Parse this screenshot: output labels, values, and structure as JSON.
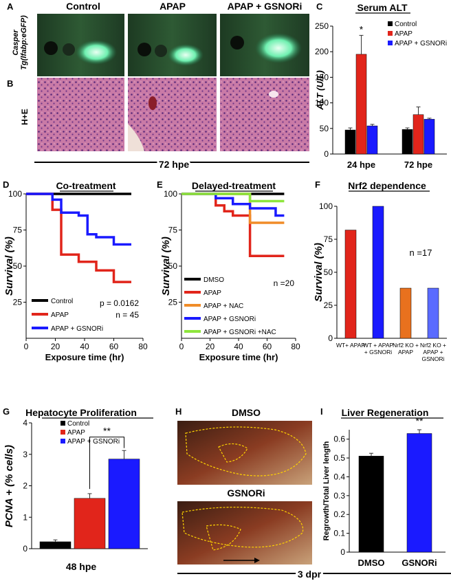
{
  "panel_letters": {
    "A": "A",
    "B": "B",
    "C": "C",
    "D": "D",
    "E": "E",
    "F": "F",
    "G": "G",
    "H": "H",
    "I": "I"
  },
  "panelA": {
    "col_headers": [
      "Control",
      "APAP",
      "APAP + GSNORi"
    ],
    "row_label_line1": "Casper",
    "row_label_line2": "Tg(lfabp:eGFP)",
    "row_b_label": "H+E",
    "time_label": "72 hpe"
  },
  "panelH": {
    "top_label": "DMSO",
    "bottom_label": "GSNORi",
    "time_label": "3 dpr"
  },
  "colors": {
    "control": "#000000",
    "apap": "#e1251b",
    "gsnori": "#1a1aff",
    "nac": "#f08c28",
    "gsnori_nac": "#8ee63c",
    "ko_apap": "#e8711e",
    "ko_gsnori": "#5a6bff"
  },
  "chart_data": [
    {
      "id": "C",
      "type": "bar",
      "title": "Serum ALT",
      "ylabel": "ALT (U/L)",
      "categories": [
        "24 hpe",
        "72 hpe"
      ],
      "ylim": [
        0,
        250
      ],
      "yticks": [
        0,
        50,
        100,
        150,
        200,
        250
      ],
      "series": [
        {
          "name": "Control",
          "color": "#000000",
          "values": [
            47,
            48
          ],
          "errors": [
            4,
            3
          ]
        },
        {
          "name": "APAP",
          "color": "#e1251b",
          "values": [
            195,
            77
          ],
          "errors": [
            37,
            15
          ]
        },
        {
          "name": "APAP + GSNORi",
          "color": "#1a1aff",
          "values": [
            55,
            68
          ],
          "errors": [
            3,
            2
          ]
        }
      ],
      "legend": "top-right",
      "annotations": [
        "*"
      ]
    },
    {
      "id": "D",
      "type": "line",
      "title": "Co-treatment",
      "xlabel": "Exposure time (hr)",
      "ylabel": "Survival (%)",
      "xlim": [
        0,
        80
      ],
      "ylim": [
        0,
        100
      ],
      "xticks": [
        0,
        20,
        40,
        60,
        80
      ],
      "yticks": [
        25,
        50,
        75,
        100
      ],
      "series": [
        {
          "name": "Control",
          "color": "#000000",
          "x": [
            0,
            72
          ],
          "y": [
            100,
            100
          ]
        },
        {
          "name": "APAP",
          "color": "#e1251b",
          "x": [
            0,
            18,
            18,
            24,
            24,
            36,
            36,
            48,
            48,
            60,
            60,
            72
          ],
          "y": [
            100,
            100,
            89,
            89,
            58,
            58,
            53,
            53,
            47,
            47,
            39,
            39
          ]
        },
        {
          "name": "APAP + GSNORi",
          "color": "#1a1aff",
          "x": [
            0,
            18,
            18,
            24,
            24,
            36,
            36,
            42,
            42,
            48,
            48,
            60,
            60,
            72
          ],
          "y": [
            100,
            100,
            96,
            96,
            87,
            87,
            85,
            85,
            72,
            72,
            70,
            70,
            65,
            65
          ]
        }
      ],
      "annotations": [
        "p = 0.0162",
        "n = 45"
      ],
      "legend": "bottom-left"
    },
    {
      "id": "E",
      "type": "line",
      "title": "Delayed-treatment",
      "xlabel": "Exposure time (hr)",
      "ylabel": "Survival (%)",
      "xlim": [
        0,
        80
      ],
      "ylim": [
        0,
        100
      ],
      "xticks": [
        0,
        20,
        40,
        60,
        80
      ],
      "yticks": [
        25,
        50,
        75,
        100
      ],
      "series": [
        {
          "name": "DMSO",
          "color": "#000000",
          "x": [
            0,
            72
          ],
          "y": [
            100,
            100
          ]
        },
        {
          "name": "APAP",
          "color": "#e1251b",
          "x": [
            0,
            24,
            24,
            30,
            30,
            36,
            36,
            48,
            48,
            72
          ],
          "y": [
            100,
            100,
            92,
            92,
            88,
            88,
            85,
            85,
            57,
            57
          ]
        },
        {
          "name": "APAP + NAC",
          "color": "#f08c28",
          "x": [
            0,
            48,
            48,
            72
          ],
          "y": [
            100,
            100,
            80,
            80
          ]
        },
        {
          "name": "APAP + GSNORi",
          "color": "#1a1aff",
          "x": [
            0,
            24,
            24,
            36,
            36,
            48,
            48,
            66,
            66,
            72
          ],
          "y": [
            100,
            100,
            97,
            97,
            93,
            93,
            90,
            90,
            85,
            85
          ]
        },
        {
          "name": "APAP + GSNORi +NAC",
          "color": "#8ee63c",
          "x": [
            0,
            48,
            48,
            72
          ],
          "y": [
            100,
            100,
            95,
            95
          ]
        }
      ],
      "annotations": [
        "n =20"
      ],
      "legend": "bottom-left"
    },
    {
      "id": "F",
      "type": "bar",
      "title": "Nrf2 dependence",
      "ylabel": "Survival (%)",
      "categories": [
        "WT+ APAP",
        "WT + APAP + GSNORi",
        "Nrf2 KO + APAP",
        "Nrf2 KO + APAP + GSNORi"
      ],
      "values": [
        82,
        100,
        38,
        38
      ],
      "colors": [
        "#e1251b",
        "#1a1aff",
        "#e8711e",
        "#5a6bff"
      ],
      "ylim": [
        0,
        100
      ],
      "yticks": [
        0,
        25,
        50,
        75,
        100
      ],
      "annotations": [
        "n =17"
      ]
    },
    {
      "id": "G",
      "type": "bar",
      "title": "Hepatocyte Proliferation",
      "ylabel": "PCNA + (% cells)",
      "xlabel": "48 hpe",
      "categories": [
        "Control",
        "APAP",
        "APAP + GSNORi"
      ],
      "values": [
        0.22,
        1.6,
        2.85
      ],
      "errors": [
        0.06,
        0.15,
        0.27
      ],
      "colors": [
        "#000000",
        "#e1251b",
        "#1a1aff"
      ],
      "ylim": [
        0,
        4
      ],
      "yticks": [
        0,
        1,
        2,
        3,
        4
      ],
      "annotations": [
        "**"
      ],
      "legend": "top-left"
    },
    {
      "id": "I",
      "type": "bar",
      "title": "Liver Regeneration",
      "ylabel": "Regrowth/Total Liver length",
      "categories": [
        "DMSO",
        "GSNORi"
      ],
      "values": [
        0.51,
        0.63
      ],
      "errors": [
        0.015,
        0.02
      ],
      "colors": [
        "#000000",
        "#1a1aff"
      ],
      "ylim": [
        0,
        0.65
      ],
      "yticks": [
        0,
        0.1,
        0.2,
        0.3,
        0.4,
        0.5,
        0.6
      ],
      "annotations": [
        "**"
      ]
    }
  ]
}
